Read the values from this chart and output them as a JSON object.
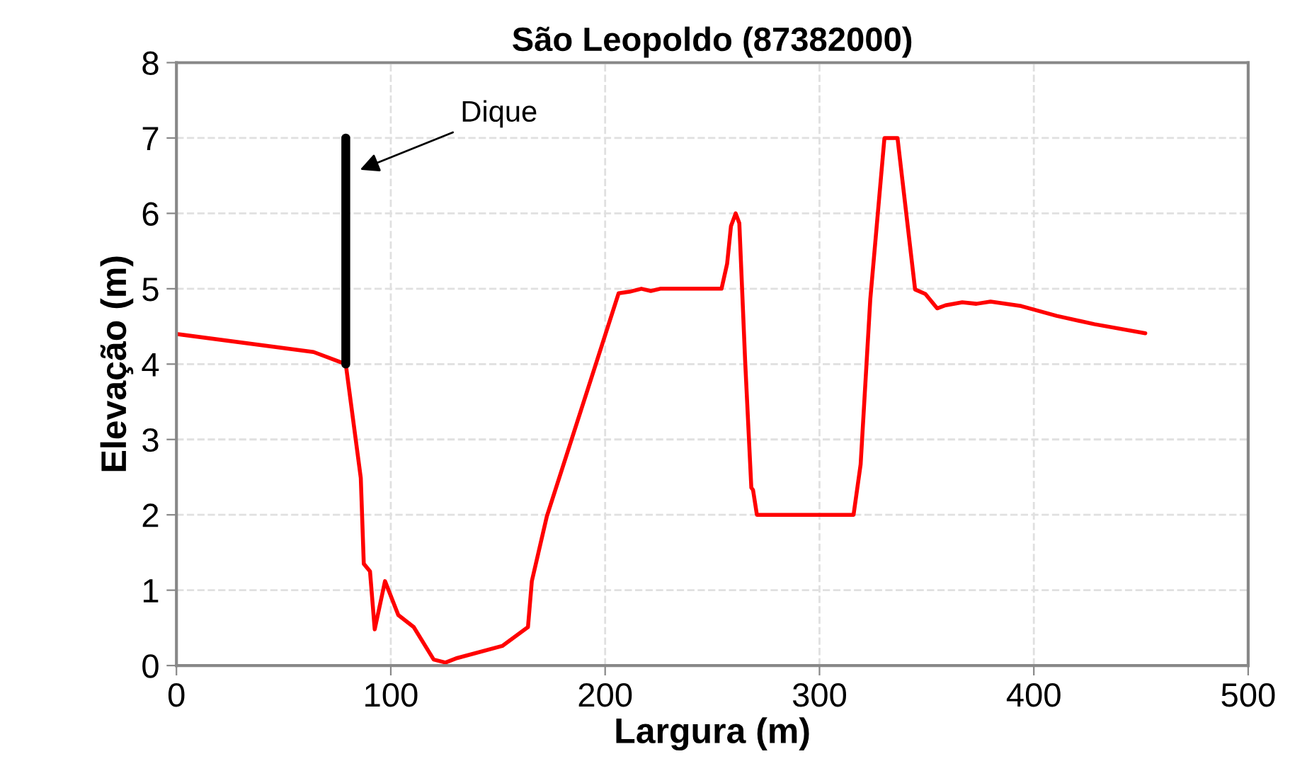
{
  "chart_data": {
    "type": "line",
    "title": "São Leopoldo (87382000)",
    "xlabel": "Largura (m)",
    "ylabel": "Elevação (m)",
    "xlim": [
      0,
      500
    ],
    "xticks": [
      0,
      100,
      200,
      300,
      400,
      500
    ],
    "ylim": [
      0,
      8
    ],
    "yticks": [
      0,
      1,
      2,
      3,
      4,
      5,
      6,
      7,
      8
    ],
    "grid": true,
    "marker": "none",
    "line_style": "solid",
    "series": [
      {
        "color": "#ff0000",
        "x": [
          0,
          64,
          79,
          86,
          87.4,
          90.3,
          92.5,
          97.3,
          103.5,
          110.7,
          120,
          125.5,
          131,
          152,
          164,
          165.8,
          172.8,
          206.3,
          211.4,
          216.9,
          221.3,
          225.7,
          254.3,
          256.9,
          258.7,
          260.9,
          262.6,
          265.3,
          268.2,
          269,
          270.8,
          315.9,
          319.2,
          323.7,
          330.3,
          336.4,
          344.6,
          349.4,
          354.9,
          358.8,
          366.6,
          373.2,
          379.8,
          394.1,
          410.6,
          428.2,
          452
        ],
        "values": [
          4.4,
          4.16,
          4.0,
          2.49,
          1.35,
          1.25,
          0.48,
          1.12,
          0.67,
          0.51,
          0.08,
          0.04,
          0.1,
          0.26,
          0.51,
          1.12,
          1.98,
          4.94,
          4.96,
          5.0,
          4.97,
          5.0,
          5.0,
          5.33,
          5.83,
          6.0,
          5.87,
          4.05,
          2.36,
          2.33,
          2.0,
          2.0,
          2.67,
          4.86,
          7.0,
          7.0,
          4.99,
          4.93,
          4.74,
          4.78,
          4.82,
          4.8,
          4.83,
          4.77,
          4.64,
          4.53,
          4.41
        ]
      },
      {
        "color": "#000000",
        "x": [
          79,
          79
        ],
        "values": [
          4.0,
          7.0
        ]
      }
    ],
    "annotations": [
      "Dique"
    ]
  }
}
